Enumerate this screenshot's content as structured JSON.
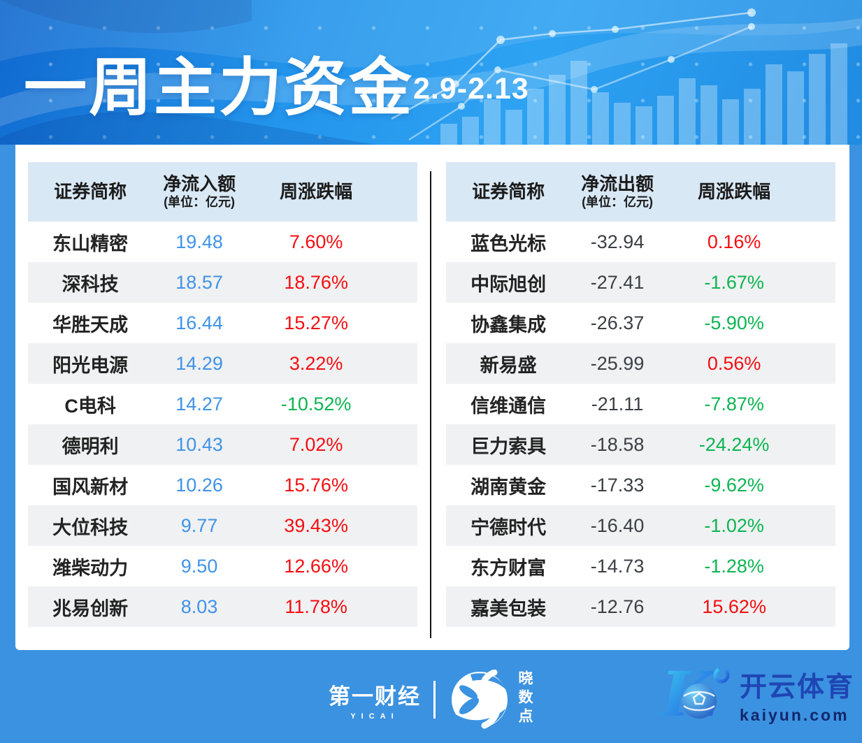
{
  "header": {
    "title": "一周主力资金",
    "date_range": "2.9-2.13"
  },
  "tables": {
    "inflow": {
      "columns": {
        "name": "证券简称",
        "amount": "净流入额",
        "amount_unit": "(单位：亿元)",
        "change": "周涨跌幅"
      },
      "rows": [
        {
          "name": "东山精密",
          "amount": "19.48",
          "change": "7.60%"
        },
        {
          "name": "深科技",
          "amount": "18.57",
          "change": "18.76%"
        },
        {
          "name": "华胜天成",
          "amount": "16.44",
          "change": "15.27%"
        },
        {
          "name": "阳光电源",
          "amount": "14.29",
          "change": "3.22%"
        },
        {
          "name": "C电科",
          "amount": "14.27",
          "change": "-10.52%"
        },
        {
          "name": "德明利",
          "amount": "10.43",
          "change": "7.02%"
        },
        {
          "name": "国风新材",
          "amount": "10.26",
          "change": "15.76%"
        },
        {
          "name": "大位科技",
          "amount": "9.77",
          "change": "39.43%"
        },
        {
          "name": "潍柴动力",
          "amount": "9.50",
          "change": "12.66%"
        },
        {
          "name": "兆易创新",
          "amount": "8.03",
          "change": "11.78%"
        }
      ]
    },
    "outflow": {
      "columns": {
        "name": "证券简称",
        "amount": "净流出额",
        "amount_unit": "(单位：亿元)",
        "change": "周涨跌幅"
      },
      "rows": [
        {
          "name": "蓝色光标",
          "amount": "-32.94",
          "change": "0.16%"
        },
        {
          "name": "中际旭创",
          "amount": "-27.41",
          "change": "-1.67%"
        },
        {
          "name": "协鑫集成",
          "amount": "-26.37",
          "change": "-5.90%"
        },
        {
          "name": "新易盛",
          "amount": "-25.99",
          "change": "0.56%"
        },
        {
          "name": "信维通信",
          "amount": "-21.11",
          "change": "-7.87%"
        },
        {
          "name": "巨力索具",
          "amount": "-18.58",
          "change": "-24.24%"
        },
        {
          "name": "湖南黄金",
          "amount": "-17.33",
          "change": "-9.62%"
        },
        {
          "name": "宁德时代",
          "amount": "-16.40",
          "change": "-1.02%"
        },
        {
          "name": "东方财富",
          "amount": "-14.73",
          "change": "-1.28%"
        },
        {
          "name": "嘉美包装",
          "amount": "-12.76",
          "change": "15.62%"
        }
      ]
    }
  },
  "footer": {
    "yicai_name": "第一财经",
    "yicai_sub": "YICAI",
    "xsd_name": "晓数点",
    "kaiyun_name": "开云体育",
    "kaiyun_domain": "kaiyun.com"
  },
  "colors": {
    "page_blue": "#3B92E0",
    "header_band": "#D9E8F5",
    "row_alt": "#F0F1F2",
    "inflow_value_blue": "#3F93E9",
    "outflow_value_dark": "#3B4046",
    "change_up_red": "#F40E12",
    "change_down_green": "#0CB551",
    "kaiyun_blue": "#1F46B4",
    "kaiyun_navy": "#13276B"
  },
  "chart_data": [
    {
      "type": "table",
      "title": "一周主力资金 2.9-2.13 净流入额",
      "columns": [
        "证券简称",
        "净流入额(亿元)",
        "周涨跌幅"
      ],
      "rows": [
        [
          "东山精密",
          19.48,
          "7.60%"
        ],
        [
          "深科技",
          18.57,
          "18.76%"
        ],
        [
          "华胜天成",
          16.44,
          "15.27%"
        ],
        [
          "阳光电源",
          14.29,
          "3.22%"
        ],
        [
          "C电科",
          14.27,
          "-10.52%"
        ],
        [
          "德明利",
          10.43,
          "7.02%"
        ],
        [
          "国风新材",
          10.26,
          "15.76%"
        ],
        [
          "大位科技",
          9.77,
          "39.43%"
        ],
        [
          "潍柴动力",
          9.5,
          "12.66%"
        ],
        [
          "兆易创新",
          8.03,
          "11.78%"
        ]
      ]
    },
    {
      "type": "table",
      "title": "一周主力资金 2.9-2.13 净流出额",
      "columns": [
        "证券简称",
        "净流出额(亿元)",
        "周涨跌幅"
      ],
      "rows": [
        [
          "蓝色光标",
          -32.94,
          "0.16%"
        ],
        [
          "中际旭创",
          -27.41,
          "-1.67%"
        ],
        [
          "协鑫集成",
          -26.37,
          "-5.90%"
        ],
        [
          "新易盛",
          -25.99,
          "0.56%"
        ],
        [
          "信维通信",
          -21.11,
          "-7.87%"
        ],
        [
          "巨力索具",
          -18.58,
          "-24.24%"
        ],
        [
          "湖南黄金",
          -17.33,
          "-9.62%"
        ],
        [
          "宁德时代",
          -16.4,
          "-1.02%"
        ],
        [
          "东方财富",
          -14.73,
          "-1.28%"
        ],
        [
          "嘉美包装",
          -12.76,
          "15.62%"
        ]
      ]
    }
  ]
}
